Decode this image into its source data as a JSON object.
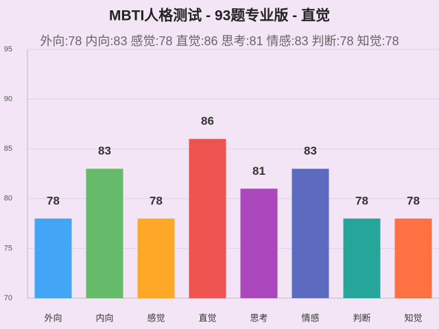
{
  "chart_data": {
    "type": "bar",
    "title": "MBTI人格测试 - 93题专业版 - 直觉",
    "subtitle": "外向:78 内向:83 感觉:78 直觉:86 思考:81 情感:83 判断:78 知觉:78",
    "categories": [
      "外向",
      "内向",
      "感觉",
      "直觉",
      "思考",
      "情感",
      "判断",
      "知觉"
    ],
    "values": [
      78,
      83,
      78,
      86,
      81,
      83,
      78,
      78
    ],
    "colors": [
      "#42a5f5",
      "#66bb6a",
      "#ffa726",
      "#ef5350",
      "#ab47bc",
      "#5c6bc0",
      "#26a69a",
      "#ff7043"
    ],
    "ylim": [
      70,
      95
    ],
    "yticks": [
      70,
      75,
      80,
      85,
      90,
      95
    ],
    "grid": true
  }
}
